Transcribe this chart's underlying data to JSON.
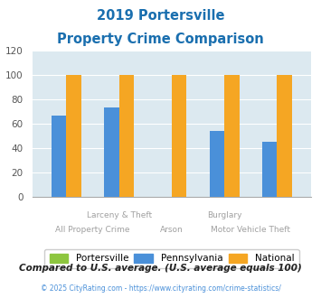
{
  "title_line1": "2019 Portersville",
  "title_line2": "Property Crime Comparison",
  "groups": [
    {
      "label": "All Property Crime",
      "portersville": 0,
      "pennsylvania": 67,
      "national": 100
    },
    {
      "label": "Larceny & Theft",
      "portersville": 0,
      "pennsylvania": 73,
      "national": 100
    },
    {
      "label": "Arson",
      "portersville": 0,
      "pennsylvania": 0,
      "national": 100
    },
    {
      "label": "Burglary",
      "portersville": 0,
      "pennsylvania": 54,
      "national": 100
    },
    {
      "label": "Motor Vehicle Theft",
      "portersville": 0,
      "pennsylvania": 45,
      "national": 100
    }
  ],
  "portersville_color": "#8dc63f",
  "pennsylvania_color": "#4a90d9",
  "national_color": "#f5a623",
  "ylim": [
    0,
    120
  ],
  "yticks": [
    0,
    20,
    40,
    60,
    80,
    100,
    120
  ],
  "title_color": "#1a6faf",
  "bg_color": "#dce9f0",
  "footer_text": "Compared to U.S. average. (U.S. average equals 100)",
  "copyright_text": "© 2025 CityRating.com - https://www.cityrating.com/crime-statistics/",
  "legend_labels": [
    "Portersville",
    "Pennsylvania",
    "National"
  ],
  "bar_width": 0.28
}
